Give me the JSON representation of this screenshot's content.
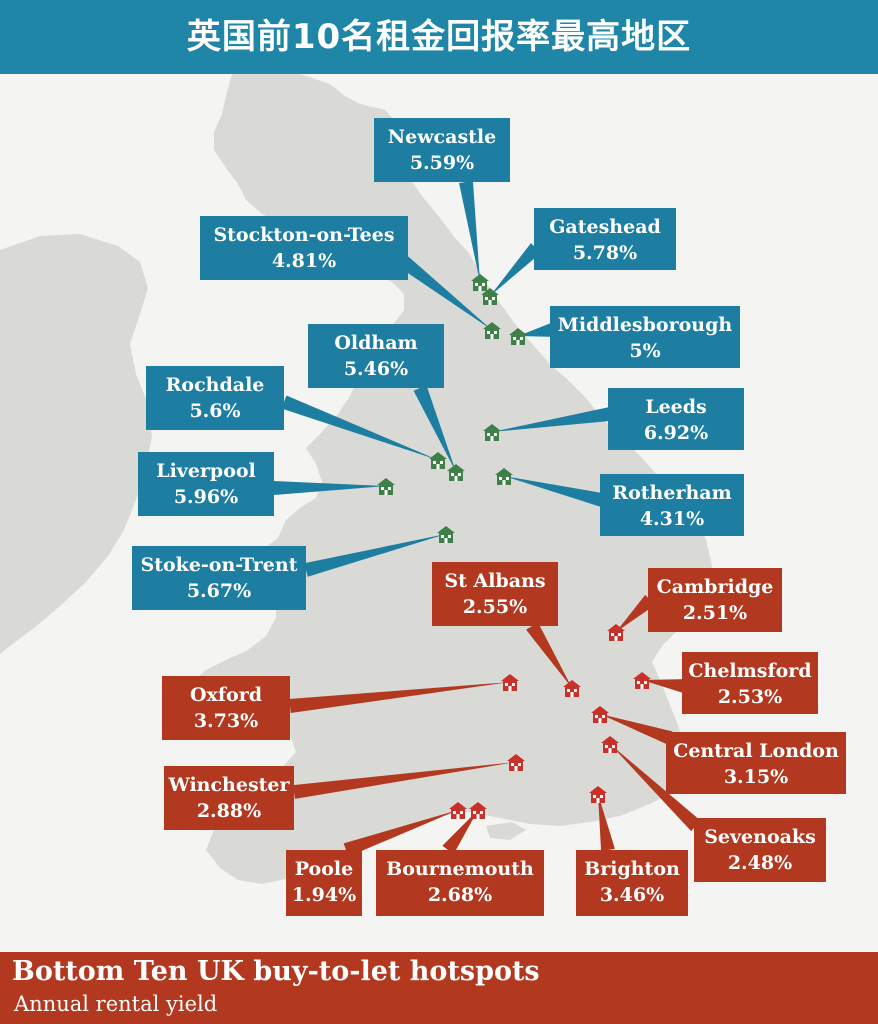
{
  "title": "英国前10名租金回报率最高地区",
  "footer": {
    "title": "Bottom Ten UK buy-to-let hotspots",
    "subtitle": "Annual rental yield"
  },
  "colors": {
    "top": "#1d7ea2",
    "bottom": "#b2391f",
    "top_icon": "#3f7f4a",
    "bottom_icon": "#c8302a",
    "land": "#d9d9d6",
    "sea": "#f4f4f2"
  },
  "icon": "house-icon",
  "top_places": [
    {
      "name": "Newcastle",
      "yield": "5.59%"
    },
    {
      "name": "Gateshead",
      "yield": "5.78%"
    },
    {
      "name": "Stockton-on-Tees",
      "yield": "4.81%"
    },
    {
      "name": "Middlesborough",
      "yield": "5%"
    },
    {
      "name": "Oldham",
      "yield": "5.46%"
    },
    {
      "name": "Rochdale",
      "yield": "5.6%"
    },
    {
      "name": "Leeds",
      "yield": "6.92%"
    },
    {
      "name": "Liverpool",
      "yield": "5.96%"
    },
    {
      "name": "Rotherham",
      "yield": "4.31%"
    },
    {
      "name": "Stoke-on-Trent",
      "yield": "5.67%"
    }
  ],
  "bottom_places": [
    {
      "name": "St Albans",
      "yield": "2.55%"
    },
    {
      "name": "Cambridge",
      "yield": "2.51%"
    },
    {
      "name": "Chelmsford",
      "yield": "2.53%"
    },
    {
      "name": "Oxford",
      "yield": "3.73%"
    },
    {
      "name": "Central London",
      "yield": "3.15%"
    },
    {
      "name": "Winchester",
      "yield": "2.88%"
    },
    {
      "name": "Sevenoaks",
      "yield": "2.48%"
    },
    {
      "name": "Poole",
      "yield": "1.94%"
    },
    {
      "name": "Bournemouth",
      "yield": "2.68%"
    },
    {
      "name": "Brighton",
      "yield": "3.46%"
    }
  ]
}
